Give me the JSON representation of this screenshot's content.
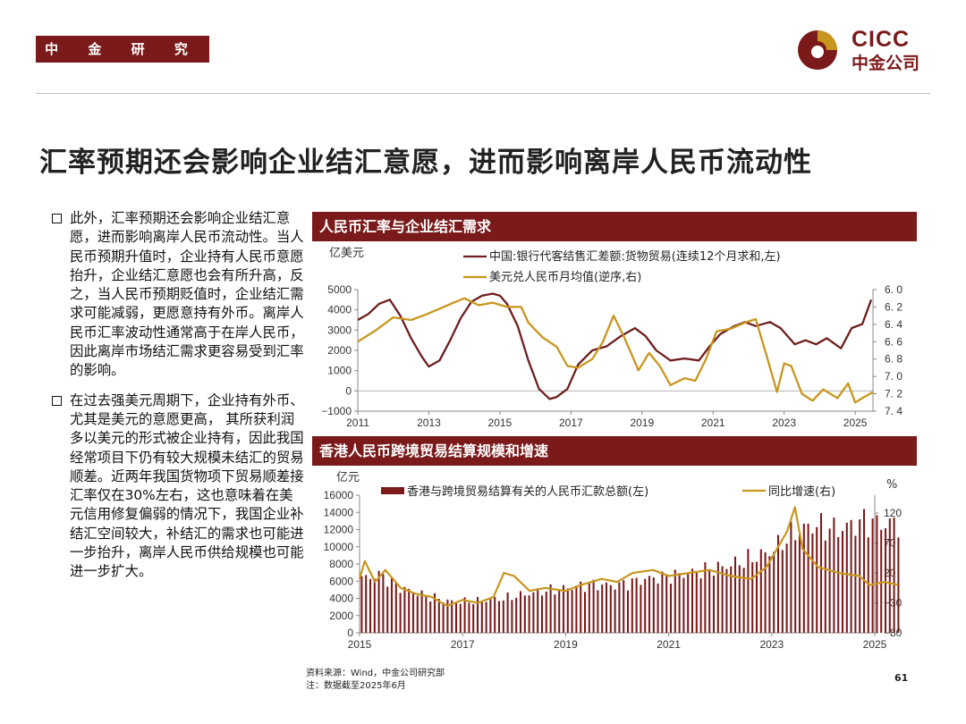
{
  "header": {
    "department": "中 金 研 究 部",
    "logo_en": "CICC",
    "logo_cn": "中金公司",
    "brand_color": "#7a1a1a"
  },
  "title": "汇率预期还会影响企业结汇意愿，进而影响离岸人民币流动性",
  "bullets": [
    "此外，汇率预期还会影响企业结汇意愿，进而影响离岸人民币流动性。当人民币预期升值时，企业持有人民币意愿抬升，企业结汇意愿也会有所升高，反之，当人民币预期贬值时，企业结汇需求可能减弱，更愿意持有外币。离岸人民币汇率波动性通常高于在岸人民币，因此离岸市场结汇需求更容易受到汇率的影响。",
    "在过去强美元周期下，企业持有外币、尤其是美元的意愿更高， 其所获利润多以美元的形式被企业持有，因此我国经常项目下仍有较大规模未结汇的贸易顺差。近两年我国货物项下贸易顺差接汇率仅在30%左右，这也意味着在美元信用修复偏弱的情况下，我国企业补结汇空间较大，补结汇的需求也可能进一步抬升，离岸人民币供给规模也可能进一步扩大。"
  ],
  "footer": {
    "source": "资料来源：Wind，中金公司研究部",
    "note": "注：数据截至2025年6月",
    "page_number": "61"
  },
  "chart_data": [
    {
      "type": "line",
      "title": "人民币汇率与企业结汇需求",
      "left_unit": "亿美元",
      "x_ticks": [
        "2011",
        "2013",
        "2015",
        "2017",
        "2019",
        "2021",
        "2023",
        "2025"
      ],
      "y_left": {
        "range": [
          -1000,
          5000
        ],
        "ticks": [
          "5000",
          "4000",
          "3000",
          "2000",
          "1000",
          "0",
          "−1000"
        ]
      },
      "y_right": {
        "range": [
          6.0,
          7.4
        ],
        "inverted": true,
        "ticks": [
          "6. 0",
          "6. 2",
          "6. 4",
          "6. 6",
          "6. 8",
          "7. 0",
          "7. 2",
          "7. 4"
        ]
      },
      "series": [
        {
          "name": "中国:银行代客结售汇差额:货物贸易(连续12个月求和,左)",
          "axis": "left",
          "color": "#6e1e1e",
          "points": [
            [
              2011.0,
              3500
            ],
            [
              2011.3,
              3800
            ],
            [
              2011.6,
              4300
            ],
            [
              2011.9,
              4500
            ],
            [
              2012.2,
              3700
            ],
            [
              2012.5,
              2600
            ],
            [
              2012.8,
              1700
            ],
            [
              2013.0,
              1200
            ],
            [
              2013.3,
              1500
            ],
            [
              2013.6,
              2500
            ],
            [
              2013.9,
              3600
            ],
            [
              2014.2,
              4400
            ],
            [
              2014.5,
              4700
            ],
            [
              2014.8,
              4800
            ],
            [
              2015.0,
              4700
            ],
            [
              2015.2,
              4300
            ],
            [
              2015.5,
              3200
            ],
            [
              2015.8,
              1500
            ],
            [
              2016.1,
              100
            ],
            [
              2016.4,
              -400
            ],
            [
              2016.6,
              -300
            ],
            [
              2016.9,
              100
            ],
            [
              2017.2,
              1300
            ],
            [
              2017.6,
              2000
            ],
            [
              2018.0,
              2200
            ],
            [
              2018.4,
              2700
            ],
            [
              2018.8,
              3100
            ],
            [
              2019.1,
              2700
            ],
            [
              2019.4,
              2000
            ],
            [
              2019.8,
              1500
            ],
            [
              2020.2,
              1600
            ],
            [
              2020.6,
              1500
            ],
            [
              2020.9,
              2200
            ],
            [
              2021.2,
              2800
            ],
            [
              2021.6,
              3200
            ],
            [
              2021.9,
              3400
            ],
            [
              2022.2,
              3200
            ],
            [
              2022.6,
              3400
            ],
            [
              2022.9,
              3100
            ],
            [
              2023.3,
              2300
            ],
            [
              2023.6,
              2500
            ],
            [
              2023.9,
              2300
            ],
            [
              2024.2,
              2600
            ],
            [
              2024.6,
              2100
            ],
            [
              2024.9,
              3100
            ],
            [
              2025.2,
              3300
            ],
            [
              2025.45,
              4500
            ]
          ]
        },
        {
          "name": "美元兑人民币月均值(逆序,右)",
          "axis": "right",
          "color": "#c8961e",
          "points": [
            [
              2011.0,
              6.6
            ],
            [
              2011.5,
              6.47
            ],
            [
              2012.0,
              6.32
            ],
            [
              2012.5,
              6.35
            ],
            [
              2012.9,
              6.29
            ],
            [
              2013.3,
              6.22
            ],
            [
              2013.7,
              6.15
            ],
            [
              2014.0,
              6.1
            ],
            [
              2014.4,
              6.18
            ],
            [
              2014.8,
              6.15
            ],
            [
              2015.2,
              6.2
            ],
            [
              2015.6,
              6.2
            ],
            [
              2015.8,
              6.38
            ],
            [
              2016.2,
              6.55
            ],
            [
              2016.6,
              6.66
            ],
            [
              2016.9,
              6.88
            ],
            [
              2017.2,
              6.9
            ],
            [
              2017.6,
              6.8
            ],
            [
              2017.9,
              6.6
            ],
            [
              2018.2,
              6.3
            ],
            [
              2018.5,
              6.55
            ],
            [
              2018.9,
              6.93
            ],
            [
              2019.2,
              6.73
            ],
            [
              2019.5,
              6.88
            ],
            [
              2019.8,
              7.1
            ],
            [
              2020.2,
              7.02
            ],
            [
              2020.5,
              7.05
            ],
            [
              2020.8,
              6.8
            ],
            [
              2021.1,
              6.48
            ],
            [
              2021.5,
              6.45
            ],
            [
              2021.9,
              6.38
            ],
            [
              2022.2,
              6.34
            ],
            [
              2022.5,
              6.75
            ],
            [
              2022.8,
              7.18
            ],
            [
              2023.0,
              6.85
            ],
            [
              2023.2,
              6.88
            ],
            [
              2023.5,
              7.2
            ],
            [
              2023.8,
              7.28
            ],
            [
              2024.1,
              7.15
            ],
            [
              2024.5,
              7.25
            ],
            [
              2024.8,
              7.08
            ],
            [
              2025.0,
              7.3
            ],
            [
              2025.2,
              7.25
            ],
            [
              2025.5,
              7.18
            ]
          ]
        }
      ]
    },
    {
      "type": "bar",
      "title": "香港人民币跨境贸易结算规模和增速",
      "left_unit": "亿元",
      "right_unit": "%",
      "x_ticks": [
        "2015",
        "2017",
        "2019",
        "2021",
        "2023",
        "2025"
      ],
      "y_left": {
        "range": [
          0,
          16000
        ],
        "ticks": [
          "16000",
          "14000",
          "12000",
          "10000",
          "8000",
          "6000",
          "4000",
          "2000",
          "0"
        ]
      },
      "y_right": {
        "range": [
          -80,
          150
        ],
        "ticks": [
          "120",
          "70",
          "20",
          "−30",
          "−80"
        ]
      },
      "series": [
        {
          "name": "香港与跨境贸易结算有关的人民币汇款总额(左)",
          "axis": "left",
          "color": "#7a1a1a",
          "anchors": [
            [
              2015.0,
              6200
            ],
            [
              2015.4,
              6800
            ],
            [
              2015.8,
              5200
            ],
            [
              2016.3,
              4300
            ],
            [
              2016.8,
              3600
            ],
            [
              2017.3,
              3700
            ],
            [
              2017.8,
              4000
            ],
            [
              2018.4,
              4700
            ],
            [
              2019.0,
              5200
            ],
            [
              2019.5,
              5600
            ],
            [
              2020.0,
              5500
            ],
            [
              2020.5,
              6200
            ],
            [
              2021.0,
              6600
            ],
            [
              2021.5,
              7000
            ],
            [
              2022.0,
              7600
            ],
            [
              2022.5,
              8400
            ],
            [
              2023.0,
              9500
            ],
            [
              2023.4,
              11500
            ],
            [
              2023.8,
              12500
            ],
            [
              2024.3,
              12000
            ],
            [
              2024.8,
              13000
            ],
            [
              2025.2,
              12600
            ],
            [
              2025.45,
              12800
            ]
          ]
        },
        {
          "name": "同比增速(右)",
          "axis": "right",
          "color": "#c8961e",
          "points": [
            [
              2015.0,
              10
            ],
            [
              2015.1,
              40
            ],
            [
              2015.3,
              5
            ],
            [
              2015.5,
              25
            ],
            [
              2015.8,
              -5
            ],
            [
              2016.1,
              -15
            ],
            [
              2016.4,
              -20
            ],
            [
              2016.7,
              -35
            ],
            [
              2017.0,
              -25
            ],
            [
              2017.3,
              -30
            ],
            [
              2017.6,
              -20
            ],
            [
              2017.8,
              20
            ],
            [
              2018.0,
              15
            ],
            [
              2018.3,
              -10
            ],
            [
              2018.6,
              -5
            ],
            [
              2019.0,
              -10
            ],
            [
              2019.3,
              0
            ],
            [
              2019.7,
              10
            ],
            [
              2020.0,
              5
            ],
            [
              2020.3,
              20
            ],
            [
              2020.7,
              25
            ],
            [
              2021.0,
              15
            ],
            [
              2021.4,
              20
            ],
            [
              2021.8,
              25
            ],
            [
              2022.2,
              15
            ],
            [
              2022.6,
              10
            ],
            [
              2022.9,
              30
            ],
            [
              2023.1,
              60
            ],
            [
              2023.3,
              90
            ],
            [
              2023.45,
              130
            ],
            [
              2023.6,
              60
            ],
            [
              2023.9,
              30
            ],
            [
              2024.3,
              20
            ],
            [
              2024.7,
              15
            ],
            [
              2024.9,
              0
            ],
            [
              2025.2,
              5
            ],
            [
              2025.45,
              0
            ]
          ]
        }
      ]
    }
  ]
}
